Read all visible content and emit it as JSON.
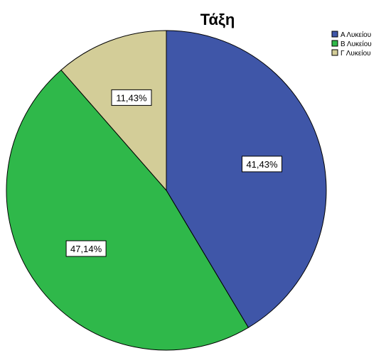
{
  "chart_data": {
    "type": "pie",
    "title": "Τάξη",
    "legend_position": "top-right",
    "slices": [
      {
        "name": "Α Λυκείου",
        "value": 41.43,
        "label": "41,43%",
        "color": "#3f56a8"
      },
      {
        "name": "Β Λυκείου",
        "value": 47.14,
        "label": "47,14%",
        "color": "#2fb84a"
      },
      {
        "name": "Γ Λυκείου",
        "value": 11.43,
        "label": "11,43%",
        "color": "#d3cd98"
      }
    ]
  }
}
